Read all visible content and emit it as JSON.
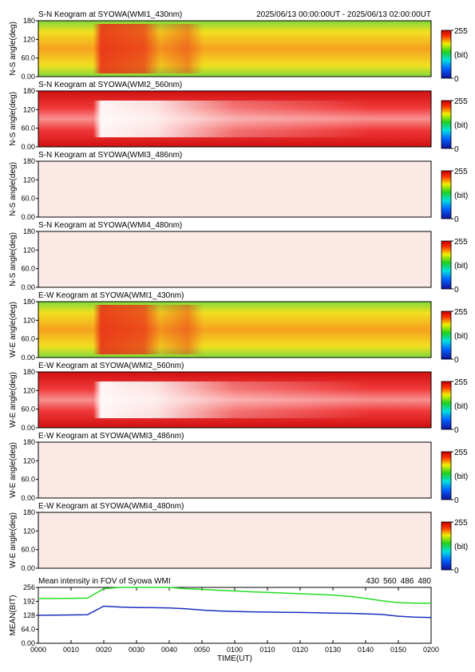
{
  "chart_data": [
    {
      "type": "keogram",
      "title": "S-N Keogram at SYOWA(WMI1_430nm)",
      "subtitle": "2025/06/13 00:00:00UT - 2025/06/13 02:00:00UT",
      "ylabel": "N-S angle(deg)",
      "ylim": [
        0,
        180
      ],
      "yticks": [
        {
          "value": 0,
          "label": "0.00"
        },
        {
          "value": 60,
          "label": "60.0"
        },
        120,
        180
      ],
      "colorbar_ticks": [
        0,
        255
      ],
      "colorbar_label": "(bit)"
    },
    {
      "type": "keogram",
      "title": "S-N Keogram at SYOWA(WMI2_560nm)",
      "ylabel": "N-S angle(deg)",
      "ylim": [
        0,
        180
      ],
      "yticks": [
        {
          "value": 0,
          "label": "0.00"
        },
        {
          "value": 60,
          "label": "60.0"
        },
        120,
        180
      ],
      "colorbar_ticks": [
        0,
        255
      ],
      "colorbar_label": "(bit)"
    },
    {
      "type": "keogram",
      "title": "S-N Keogram at SYOWA(WMI3_486nm)",
      "ylabel": "N-S angle(deg)",
      "ylim": [
        0,
        180
      ],
      "yticks": [
        {
          "value": 0,
          "label": "0.00"
        },
        {
          "value": 60,
          "label": "60.0"
        },
        120,
        180
      ],
      "colorbar_ticks": [
        0,
        255
      ],
      "colorbar_label": "(bit)"
    },
    {
      "type": "keogram",
      "title": "S-N Keogram at SYOWA(WMI4_480nm)",
      "ylabel": "N-S angle(deg)",
      "ylim": [
        0,
        180
      ],
      "yticks": [
        {
          "value": 0,
          "label": "0.00"
        },
        {
          "value": 60,
          "label": "60.0"
        },
        120,
        180
      ],
      "colorbar_ticks": [
        0,
        255
      ],
      "colorbar_label": "(bit)"
    },
    {
      "type": "keogram",
      "title": "E-W Keogram at SYOWA(WMI1_430nm)",
      "ylabel": "W-E angle(deg)",
      "ylim": [
        0,
        180
      ],
      "yticks": [
        {
          "value": 0,
          "label": "0.00"
        },
        {
          "value": 60,
          "label": "60.0"
        },
        120,
        180
      ],
      "colorbar_ticks": [
        0,
        255
      ],
      "colorbar_label": "(bit)"
    },
    {
      "type": "keogram",
      "title": "E-W Keogram at SYOWA(WMI2_560nm)",
      "ylabel": "W-E angle(deg)",
      "ylim": [
        0,
        180
      ],
      "yticks": [
        {
          "value": 0,
          "label": "0.00"
        },
        {
          "value": 60,
          "label": "60.0"
        },
        120,
        180
      ],
      "colorbar_ticks": [
        0,
        255
      ],
      "colorbar_label": "(bit)"
    },
    {
      "type": "keogram",
      "title": "E-W Keogram at SYOWA(WMI3_486nm)",
      "ylabel": "W-E angle(deg)",
      "ylim": [
        0,
        180
      ],
      "yticks": [
        {
          "value": 0,
          "label": "0.00"
        },
        {
          "value": 60,
          "label": "60.0"
        },
        120,
        180
      ],
      "colorbar_ticks": [
        0,
        255
      ],
      "colorbar_label": "(bit)"
    },
    {
      "type": "keogram",
      "title": "E-W Keogram at SYOWA(WMI4_480nm)",
      "ylabel": "W-E angle(deg)",
      "ylim": [
        0,
        180
      ],
      "yticks": [
        {
          "value": 0,
          "label": "0.00"
        },
        {
          "value": 60,
          "label": "60.0"
        },
        120,
        180
      ],
      "colorbar_ticks": [
        0,
        255
      ],
      "colorbar_label": "(bit)"
    },
    {
      "type": "line",
      "title": "Mean intensity in FOV of Syowa WMI",
      "ylabel": "MEAN(BIT)",
      "xlabel": "TIME(UT)",
      "x": [
        0,
        5,
        10,
        15,
        20,
        25,
        30,
        35,
        40,
        45,
        50,
        55,
        60,
        65,
        70,
        75,
        80,
        85,
        90,
        95,
        100,
        105,
        110,
        115,
        120
      ],
      "xlim": [
        0,
        120
      ],
      "xticks": [
        {
          "value": 0,
          "label": "0000"
        },
        {
          "value": 10,
          "label": "0010"
        },
        {
          "value": 20,
          "label": "0020"
        },
        {
          "value": 30,
          "label": "0030"
        },
        {
          "value": 40,
          "label": "0040"
        },
        {
          "value": 50,
          "label": "0050"
        },
        {
          "value": 60,
          "label": "0100"
        },
        {
          "value": 70,
          "label": "0110"
        },
        {
          "value": 80,
          "label": "0120"
        },
        {
          "value": 90,
          "label": "0130"
        },
        {
          "value": 100,
          "label": "0140"
        },
        {
          "value": 110,
          "label": "0150"
        },
        {
          "value": 120,
          "label": "0200"
        }
      ],
      "ylim": [
        0,
        256
      ],
      "yticks": [
        {
          "value": 0,
          "label": "0.00"
        },
        {
          "value": 64,
          "label": "64.0"
        },
        128,
        192,
        256
      ],
      "series": [
        {
          "name": "430",
          "color": "#1a2fc0",
          "values": [
            128,
            129,
            130,
            131,
            170,
            166,
            164,
            163,
            162,
            158,
            152,
            148,
            146,
            144,
            143,
            142,
            141,
            140,
            138,
            137,
            135,
            132,
            124,
            120,
            118
          ]
        },
        {
          "name": "560",
          "color": "#22dd22",
          "values": [
            205,
            205,
            206,
            207,
            250,
            256,
            256,
            256,
            256,
            250,
            247,
            243,
            240,
            236,
            233,
            230,
            227,
            224,
            221,
            215,
            206,
            195,
            186,
            184,
            184
          ]
        },
        {
          "name": "486",
          "color": "#cc2222",
          "values": [
            null,
            null,
            null,
            null,
            null,
            null,
            null,
            null,
            null,
            null,
            null,
            null,
            null,
            null,
            null,
            null,
            null,
            null,
            null,
            null,
            null,
            null,
            null,
            null,
            null
          ]
        },
        {
          "name": "480",
          "color": "#000000",
          "values": [
            null,
            null,
            null,
            null,
            null,
            null,
            null,
            null,
            null,
            null,
            null,
            null,
            null,
            null,
            null,
            null,
            null,
            null,
            null,
            null,
            null,
            null,
            null,
            null,
            null
          ]
        }
      ]
    }
  ]
}
